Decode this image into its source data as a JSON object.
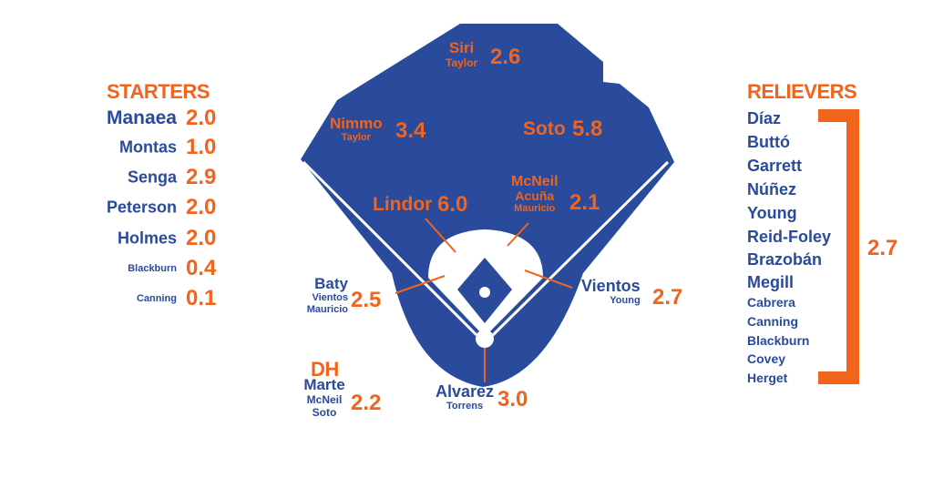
{
  "colors": {
    "blue": "#2a4a9c",
    "orange": "#f2631b",
    "infield": "#ffffff"
  },
  "starters": {
    "title": "STARTERS",
    "rows": [
      {
        "name": "Manaea",
        "value": "2.0"
      },
      {
        "name": "Montas",
        "value": "1.0"
      },
      {
        "name": "Senga",
        "value": "2.9"
      },
      {
        "name": "Peterson",
        "value": "2.0"
      },
      {
        "name": "Holmes",
        "value": "2.0"
      },
      {
        "name": "Blackburn",
        "value": "0.4"
      },
      {
        "name": "Canning",
        "value": "0.1"
      }
    ]
  },
  "relievers": {
    "title": "RELIEVERS",
    "names": [
      "Díaz",
      "Buttó",
      "Garrett",
      "Núñez",
      "Young",
      "Reid-Foley",
      "Brazobán",
      "Megill",
      "Cabrera",
      "Canning",
      "Blackburn",
      "Covey",
      "Herget"
    ],
    "value": "2.7"
  },
  "positions": {
    "cf": {
      "starter": "Siri",
      "backup": "Taylor",
      "value": "2.6"
    },
    "lf": {
      "starter": "Nimmo",
      "backup": "Taylor",
      "value": "3.4"
    },
    "rf": {
      "starter": "Soto",
      "value": "5.8"
    },
    "ss": {
      "starter": "Lindor",
      "value": "6.0"
    },
    "second": {
      "starter": "McNeil",
      "backup1": "Acuña",
      "backup2": "Mauricio",
      "value": "2.1"
    },
    "third": {
      "starter": "Baty",
      "backup1": "Vientos",
      "backup2": "Mauricio",
      "value": "2.5"
    },
    "first": {
      "starter": "Vientos",
      "backup": "Young",
      "value": "2.7"
    },
    "catcher": {
      "starter": "Alvarez",
      "backup": "Torrens",
      "value": "3.0"
    },
    "dh": {
      "title": "DH",
      "starter": "Marte",
      "backup1": "McNeil",
      "backup2": "Soto",
      "value": "2.2"
    }
  }
}
